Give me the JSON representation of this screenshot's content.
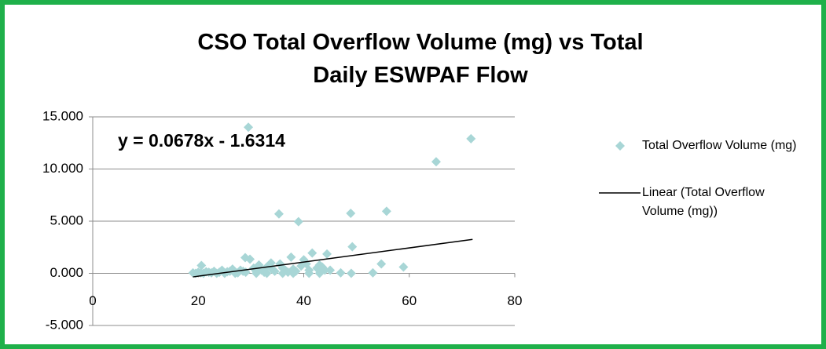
{
  "chart_data": {
    "type": "scatter",
    "title": "CSO Total Overflow Volume (mg) vs Total Daily ESWPAF Flow",
    "annotation": "y = 0.0678x - 1.6314",
    "series": [
      {
        "name": "Total Overflow Volume (mg)",
        "color": "#a8d6d6",
        "x": [
          29.5,
          71.7,
          65.1,
          35.3,
          39.0,
          48.9,
          55.7,
          49.2,
          41.6,
          44.4,
          37.6,
          40.0,
          28.9,
          29.8,
          20.6,
          33.8,
          35.5,
          43.0,
          54.7,
          58.9,
          53.1,
          47.0,
          49.0,
          45.0,
          19,
          19.5,
          20,
          20.5,
          21,
          21.5,
          22,
          22.5,
          23,
          23.5,
          24,
          24.5,
          25,
          25.5,
          26,
          26.5,
          27,
          27.5,
          28,
          28.5,
          29,
          30.5,
          31,
          31.5,
          32,
          32.5,
          33,
          34,
          34.5,
          36,
          36.5,
          37,
          38,
          38.5,
          39.5,
          40.5,
          41,
          42.5,
          43.5,
          44,
          25,
          27,
          31,
          33,
          36,
          38,
          41,
          43
        ],
        "values": [
          14.0,
          12.9,
          10.7,
          5.7,
          4.95,
          5.75,
          5.95,
          2.55,
          1.95,
          1.85,
          1.55,
          1.3,
          1.5,
          1.35,
          0.75,
          1.0,
          0.9,
          0.8,
          0.9,
          0.6,
          0.05,
          0.05,
          0.0,
          0.3,
          0.05,
          0,
          0.1,
          0.05,
          0,
          0.15,
          0.1,
          0.05,
          0.2,
          0,
          0.1,
          0.3,
          0.05,
          0.15,
          0.2,
          0.4,
          0.1,
          0.05,
          0.3,
          0.2,
          0.1,
          0.5,
          0.2,
          0.8,
          0.3,
          0.1,
          0.6,
          0.4,
          0.2,
          0.5,
          0.3,
          0.1,
          0.4,
          0.2,
          0.7,
          0.9,
          0.3,
          0.5,
          0.6,
          0.3,
          0,
          0,
          0,
          0,
          0,
          0,
          0,
          0
        ]
      }
    ],
    "trendline": {
      "name": "Linear (Total Overflow Volume (mg))",
      "color": "#000000",
      "slope": 0.0678,
      "intercept": -1.6314,
      "x": [
        19,
        72
      ]
    },
    "xlim": [
      0,
      80
    ],
    "xticks": [
      0,
      20,
      40,
      60,
      80
    ],
    "ylim": [
      -5,
      15
    ],
    "yticks": [
      {
        "value": -5,
        "label": "-5.000"
      },
      {
        "value": 0,
        "label": "0.000"
      },
      {
        "value": 5,
        "label": "5.000"
      },
      {
        "value": 10,
        "label": "10.000"
      },
      {
        "value": 15,
        "label": "15.000"
      }
    ],
    "grid": true
  }
}
